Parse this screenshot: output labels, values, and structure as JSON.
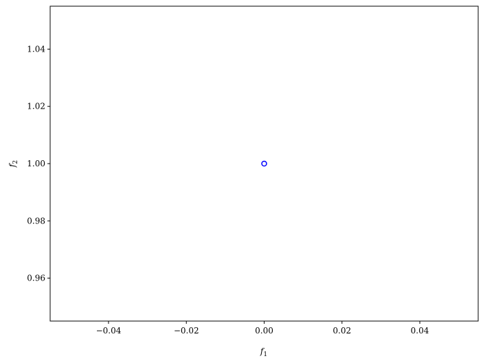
{
  "chart_data": {
    "type": "scatter",
    "title": "",
    "xlabel": "f1",
    "ylabel": "f2",
    "xlim": [
      -0.055,
      0.055
    ],
    "ylim": [
      0.945,
      1.055
    ],
    "xticks": [
      "−0.04",
      "−0.02",
      "0.00",
      "0.02",
      "0.04"
    ],
    "xtick_values": [
      -0.04,
      -0.02,
      0,
      0.02,
      0.04
    ],
    "yticks": [
      "0.96",
      "0.98",
      "1.00",
      "1.02",
      "1.04"
    ],
    "ytick_values": [
      0.96,
      0.98,
      1.0,
      1.02,
      1.04
    ],
    "grid": false,
    "series": [
      {
        "marker": "open-circle",
        "color": "#0000ff",
        "points": [
          {
            "x": 0,
            "y": 1
          }
        ]
      }
    ]
  }
}
